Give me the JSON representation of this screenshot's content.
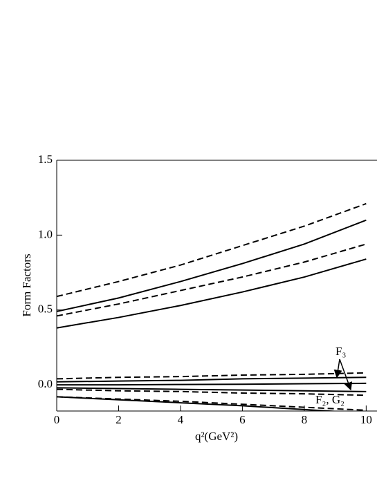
{
  "chart_data": {
    "type": "line",
    "y_label": "Form Factors",
    "x_label": "q²(GeV²)",
    "annotations": [
      "F₃",
      "F₂, G₂"
    ],
    "x": [
      0,
      2,
      4,
      6,
      8,
      10
    ],
    "xlim": [
      0,
      10.35
    ],
    "xticks": [
      0,
      2,
      4,
      6,
      8,
      10
    ],
    "ylim": [
      -0.175,
      1.5
    ],
    "yticks": [
      {
        "value": 0,
        "label": "0.0"
      },
      0.5,
      {
        "value": 1,
        "label": "1.0"
      },
      1.5
    ],
    "color": "#000000",
    "series": [
      {
        "style": "dashed",
        "values": [
          0.59,
          0.69,
          0.8,
          0.93,
          1.06,
          1.21
        ]
      },
      {
        "style": "solid",
        "values": [
          0.49,
          0.58,
          0.69,
          0.81,
          0.94,
          1.1
        ]
      },
      {
        "style": "dashed",
        "values": [
          0.46,
          0.54,
          0.63,
          0.72,
          0.82,
          0.94
        ]
      },
      {
        "style": "solid",
        "values": [
          0.38,
          0.45,
          0.53,
          0.62,
          0.72,
          0.84
        ]
      },
      {
        "style": "dashed",
        "values": [
          0.04,
          0.05,
          0.055,
          0.065,
          0.07,
          0.08
        ]
      },
      {
        "style": "solid",
        "values": [
          0.02,
          0.025,
          0.03,
          0.04,
          0.045,
          0.05
        ]
      },
      {
        "style": "solid",
        "values": [
          0,
          0,
          0.002,
          0.004,
          0.007,
          0.01
        ]
      },
      {
        "style": "solid",
        "values": [
          -0.02,
          -0.025,
          -0.03,
          -0.035,
          -0.04,
          -0.045
        ]
      },
      {
        "style": "dashed",
        "values": [
          -0.03,
          -0.04,
          -0.045,
          -0.055,
          -0.06,
          -0.07
        ]
      },
      {
        "style": "solid",
        "values": [
          -0.08,
          -0.1,
          -0.12,
          -0.14,
          -0.165,
          -0.19
        ]
      },
      {
        "style": "dashed",
        "values": [
          -0.08,
          -0.095,
          -0.11,
          -0.13,
          -0.15,
          -0.17
        ]
      }
    ]
  }
}
